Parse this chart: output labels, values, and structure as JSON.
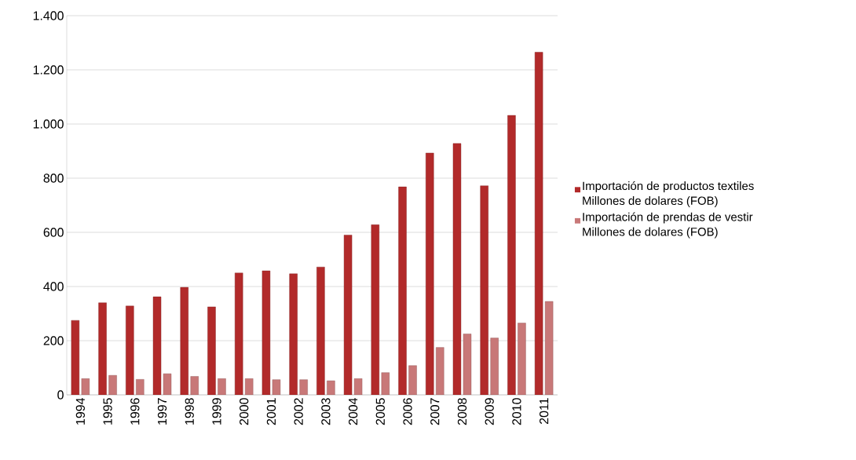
{
  "chart_data": {
    "type": "bar",
    "categories": [
      "1994",
      "1995",
      "1996",
      "1997",
      "1998",
      "1999",
      "2000",
      "2001",
      "2002",
      "2003",
      "2004",
      "2005",
      "2006",
      "2007",
      "2008",
      "2009",
      "2010",
      "2011"
    ],
    "series": [
      {
        "name": "Importación de productos textiles Millones de dolares (FOB)",
        "color": "#b22a2a",
        "values": [
          275,
          340,
          328,
          362,
          397,
          325,
          450,
          458,
          447,
          472,
          590,
          628,
          768,
          893,
          928,
          772,
          1032,
          1265
        ]
      },
      {
        "name": "Importación de prendas de vestir Millones de dolares (FOB)",
        "color": "#c87878",
        "values": [
          60,
          72,
          57,
          78,
          68,
          60,
          60,
          56,
          56,
          52,
          60,
          82,
          108,
          175,
          225,
          210,
          265,
          345
        ]
      }
    ],
    "ylim": [
      0,
      1400
    ],
    "yticks": [
      {
        "value": 0,
        "label": "0"
      },
      {
        "value": 200,
        "label": "200"
      },
      {
        "value": 400,
        "label": "400"
      },
      {
        "value": 600,
        "label": "600"
      },
      {
        "value": 800,
        "label": "800"
      },
      {
        "value": 1000,
        "label": "1.000"
      },
      {
        "value": 1200,
        "label": "1.200"
      },
      {
        "value": 1400,
        "label": "1.400"
      }
    ],
    "grid": "y",
    "legend": "right"
  }
}
